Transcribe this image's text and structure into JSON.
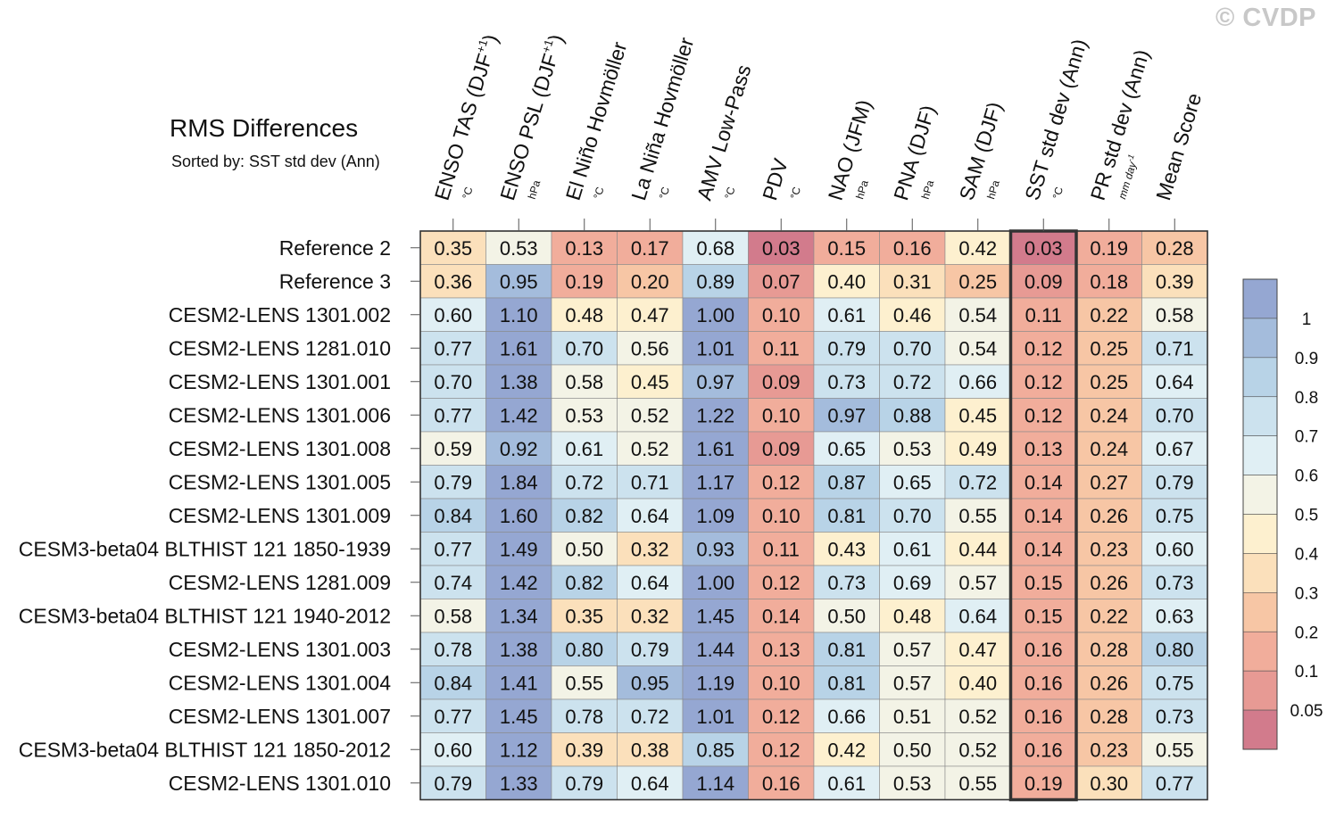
{
  "watermark": "© CVDP",
  "title": "RMS Differences",
  "subtitle": "Sorted by: SST std dev (Ann)",
  "chart_data": {
    "type": "heatmap",
    "title": "RMS Differences",
    "sorted_by": "SST std dev (Ann)",
    "highlighted_column": "SST std dev (Ann)",
    "columns": [
      {
        "name": "ENSO TAS (DJF",
        "sup": "+1",
        "close": ")",
        "unit": "°C"
      },
      {
        "name": "ENSO PSL (DJF",
        "sup": "+1",
        "close": ")",
        "unit": "hPa"
      },
      {
        "name": "El Niño Hovmöller",
        "unit": "°C"
      },
      {
        "name": "La Niña Hovmöller",
        "unit": "°C"
      },
      {
        "name": "AMV Low-Pass",
        "unit": "°C"
      },
      {
        "name": "PDV",
        "unit": "°C"
      },
      {
        "name": "NAO (JFM)",
        "unit": "hPa"
      },
      {
        "name": "PNA (DJF)",
        "unit": "hPa"
      },
      {
        "name": "SAM (DJF)",
        "unit": "hPa"
      },
      {
        "name": "SST std dev (Ann)",
        "unit": "°C"
      },
      {
        "name": "PR std dev (Ann)",
        "unit": "mm day",
        "unit_sup": "-1"
      },
      {
        "name": "Mean Score",
        "unit": ""
      }
    ],
    "rows": [
      {
        "label": "Reference 2",
        "values": [
          "0.35",
          "0.53",
          "0.13",
          "0.17",
          "0.68",
          "0.03",
          "0.15",
          "0.16",
          "0.42",
          "0.03",
          "0.19",
          "0.28"
        ]
      },
      {
        "label": "Reference 3",
        "values": [
          "0.36",
          "0.95",
          "0.19",
          "0.20",
          "0.89",
          "0.07",
          "0.40",
          "0.31",
          "0.25",
          "0.09",
          "0.18",
          "0.39"
        ]
      },
      {
        "label": "CESM2-LENS 1301.002",
        "values": [
          "0.60",
          "1.10",
          "0.48",
          "0.47",
          "1.00",
          "0.10",
          "0.61",
          "0.46",
          "0.54",
          "0.11",
          "0.22",
          "0.58"
        ]
      },
      {
        "label": "CESM2-LENS 1281.010",
        "values": [
          "0.77",
          "1.61",
          "0.70",
          "0.56",
          "1.01",
          "0.11",
          "0.79",
          "0.70",
          "0.54",
          "0.12",
          "0.25",
          "0.71"
        ]
      },
      {
        "label": "CESM2-LENS 1301.001",
        "values": [
          "0.70",
          "1.38",
          "0.58",
          "0.45",
          "0.97",
          "0.09",
          "0.73",
          "0.72",
          "0.66",
          "0.12",
          "0.25",
          "0.64"
        ]
      },
      {
        "label": "CESM2-LENS 1301.006",
        "values": [
          "0.77",
          "1.42",
          "0.53",
          "0.52",
          "1.22",
          "0.10",
          "0.97",
          "0.88",
          "0.45",
          "0.12",
          "0.24",
          "0.70"
        ]
      },
      {
        "label": "CESM2-LENS 1301.008",
        "values": [
          "0.59",
          "0.92",
          "0.61",
          "0.52",
          "1.61",
          "0.09",
          "0.65",
          "0.53",
          "0.49",
          "0.13",
          "0.24",
          "0.67"
        ]
      },
      {
        "label": "CESM2-LENS 1301.005",
        "values": [
          "0.79",
          "1.84",
          "0.72",
          "0.71",
          "1.17",
          "0.12",
          "0.87",
          "0.65",
          "0.72",
          "0.14",
          "0.27",
          "0.79"
        ]
      },
      {
        "label": "CESM2-LENS 1301.009",
        "values": [
          "0.84",
          "1.60",
          "0.82",
          "0.64",
          "1.09",
          "0.10",
          "0.81",
          "0.70",
          "0.55",
          "0.14",
          "0.26",
          "0.75"
        ]
      },
      {
        "label": "CESM3-beta04 BLTHIST 121 1850-1939",
        "values": [
          "0.77",
          "1.49",
          "0.50",
          "0.32",
          "0.93",
          "0.11",
          "0.43",
          "0.61",
          "0.44",
          "0.14",
          "0.23",
          "0.60"
        ]
      },
      {
        "label": "CESM2-LENS 1281.009",
        "values": [
          "0.74",
          "1.42",
          "0.82",
          "0.64",
          "1.00",
          "0.12",
          "0.73",
          "0.69",
          "0.57",
          "0.15",
          "0.26",
          "0.73"
        ]
      },
      {
        "label": "CESM3-beta04 BLTHIST 121 1940-2012",
        "values": [
          "0.58",
          "1.34",
          "0.35",
          "0.32",
          "1.45",
          "0.14",
          "0.50",
          "0.48",
          "0.64",
          "0.15",
          "0.22",
          "0.63"
        ]
      },
      {
        "label": "CESM2-LENS 1301.003",
        "values": [
          "0.78",
          "1.38",
          "0.80",
          "0.79",
          "1.44",
          "0.13",
          "0.81",
          "0.57",
          "0.47",
          "0.16",
          "0.28",
          "0.80"
        ]
      },
      {
        "label": "CESM2-LENS 1301.004",
        "values": [
          "0.84",
          "1.41",
          "0.55",
          "0.95",
          "1.19",
          "0.10",
          "0.81",
          "0.57",
          "0.40",
          "0.16",
          "0.26",
          "0.75"
        ]
      },
      {
        "label": "CESM2-LENS 1301.007",
        "values": [
          "0.77",
          "1.45",
          "0.78",
          "0.72",
          "1.01",
          "0.12",
          "0.66",
          "0.51",
          "0.52",
          "0.16",
          "0.28",
          "0.73"
        ]
      },
      {
        "label": "CESM3-beta04 BLTHIST 121 1850-2012",
        "values": [
          "0.60",
          "1.12",
          "0.39",
          "0.38",
          "0.85",
          "0.12",
          "0.42",
          "0.50",
          "0.52",
          "0.16",
          "0.23",
          "0.55"
        ]
      },
      {
        "label": "CESM2-LENS 1301.010",
        "values": [
          "0.79",
          "1.33",
          "0.79",
          "0.64",
          "1.14",
          "0.16",
          "0.61",
          "0.53",
          "0.55",
          "0.19",
          "0.30",
          "0.77"
        ]
      }
    ],
    "color_levels": [
      0.05,
      0.1,
      0.2,
      0.3,
      0.4,
      0.5,
      0.6,
      0.7,
      0.8,
      0.9,
      1
    ],
    "colorbar_labels": [
      "1",
      "0.9",
      "0.8",
      "0.7",
      "0.6",
      "0.5",
      "0.4",
      "0.3",
      "0.2",
      "0.1",
      "0.05"
    ],
    "colors": [
      "#d27b8c",
      "#e79a94",
      "#f1ad9b",
      "#f7c6a5",
      "#fbe0bb",
      "#fdf0cf",
      "#f3f3e6",
      "#e0eff4",
      "#cce2ee",
      "#b8d3e7",
      "#a4bcdc",
      "#95a7d2"
    ]
  }
}
